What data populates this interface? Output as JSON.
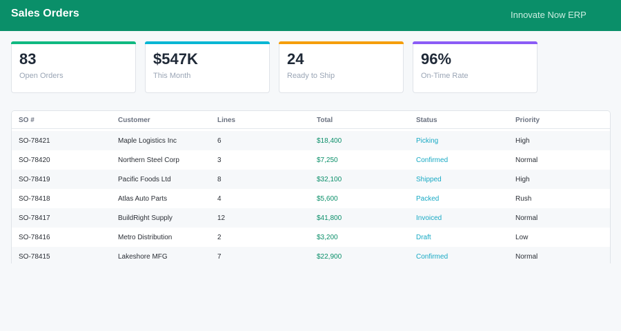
{
  "header": {
    "title": "Sales Orders",
    "brand": "Innovate Now ERP"
  },
  "colors": {
    "header_bg": "#0a8f69",
    "card_bar_1": "#10b981",
    "card_bar_2": "#06b6d4",
    "card_bar_3": "#f59e0b",
    "card_bar_4": "#8b5cf6",
    "total_text": "#0a8f69",
    "status_text": "#17a9c4"
  },
  "cards": [
    {
      "value": "83",
      "label": "Open Orders"
    },
    {
      "value": "$547K",
      "label": "This Month"
    },
    {
      "value": "24",
      "label": "Ready to Ship"
    },
    {
      "value": "96%",
      "label": "On-Time Rate"
    }
  ],
  "table": {
    "headers": [
      "SO #",
      "Customer",
      "Lines",
      "Total",
      "Status",
      "Priority"
    ],
    "rows": [
      [
        "SO-78421",
        "Maple Logistics Inc",
        "6",
        "$18,400",
        "Picking",
        "High"
      ],
      [
        "SO-78420",
        "Northern Steel Corp",
        "3",
        "$7,250",
        "Confirmed",
        "Normal"
      ],
      [
        "SO-78419",
        "Pacific Foods Ltd",
        "8",
        "$32,100",
        "Shipped",
        "High"
      ],
      [
        "SO-78418",
        "Atlas Auto Parts",
        "4",
        "$5,600",
        "Packed",
        "Rush"
      ],
      [
        "SO-78417",
        "BuildRight Supply",
        "12",
        "$41,800",
        "Invoiced",
        "Normal"
      ],
      [
        "SO-78416",
        "Metro Distribution",
        "2",
        "$3,200",
        "Draft",
        "Low"
      ],
      [
        "SO-78415",
        "Lakeshore MFG",
        "7",
        "$22,900",
        "Confirmed",
        "Normal"
      ]
    ]
  }
}
